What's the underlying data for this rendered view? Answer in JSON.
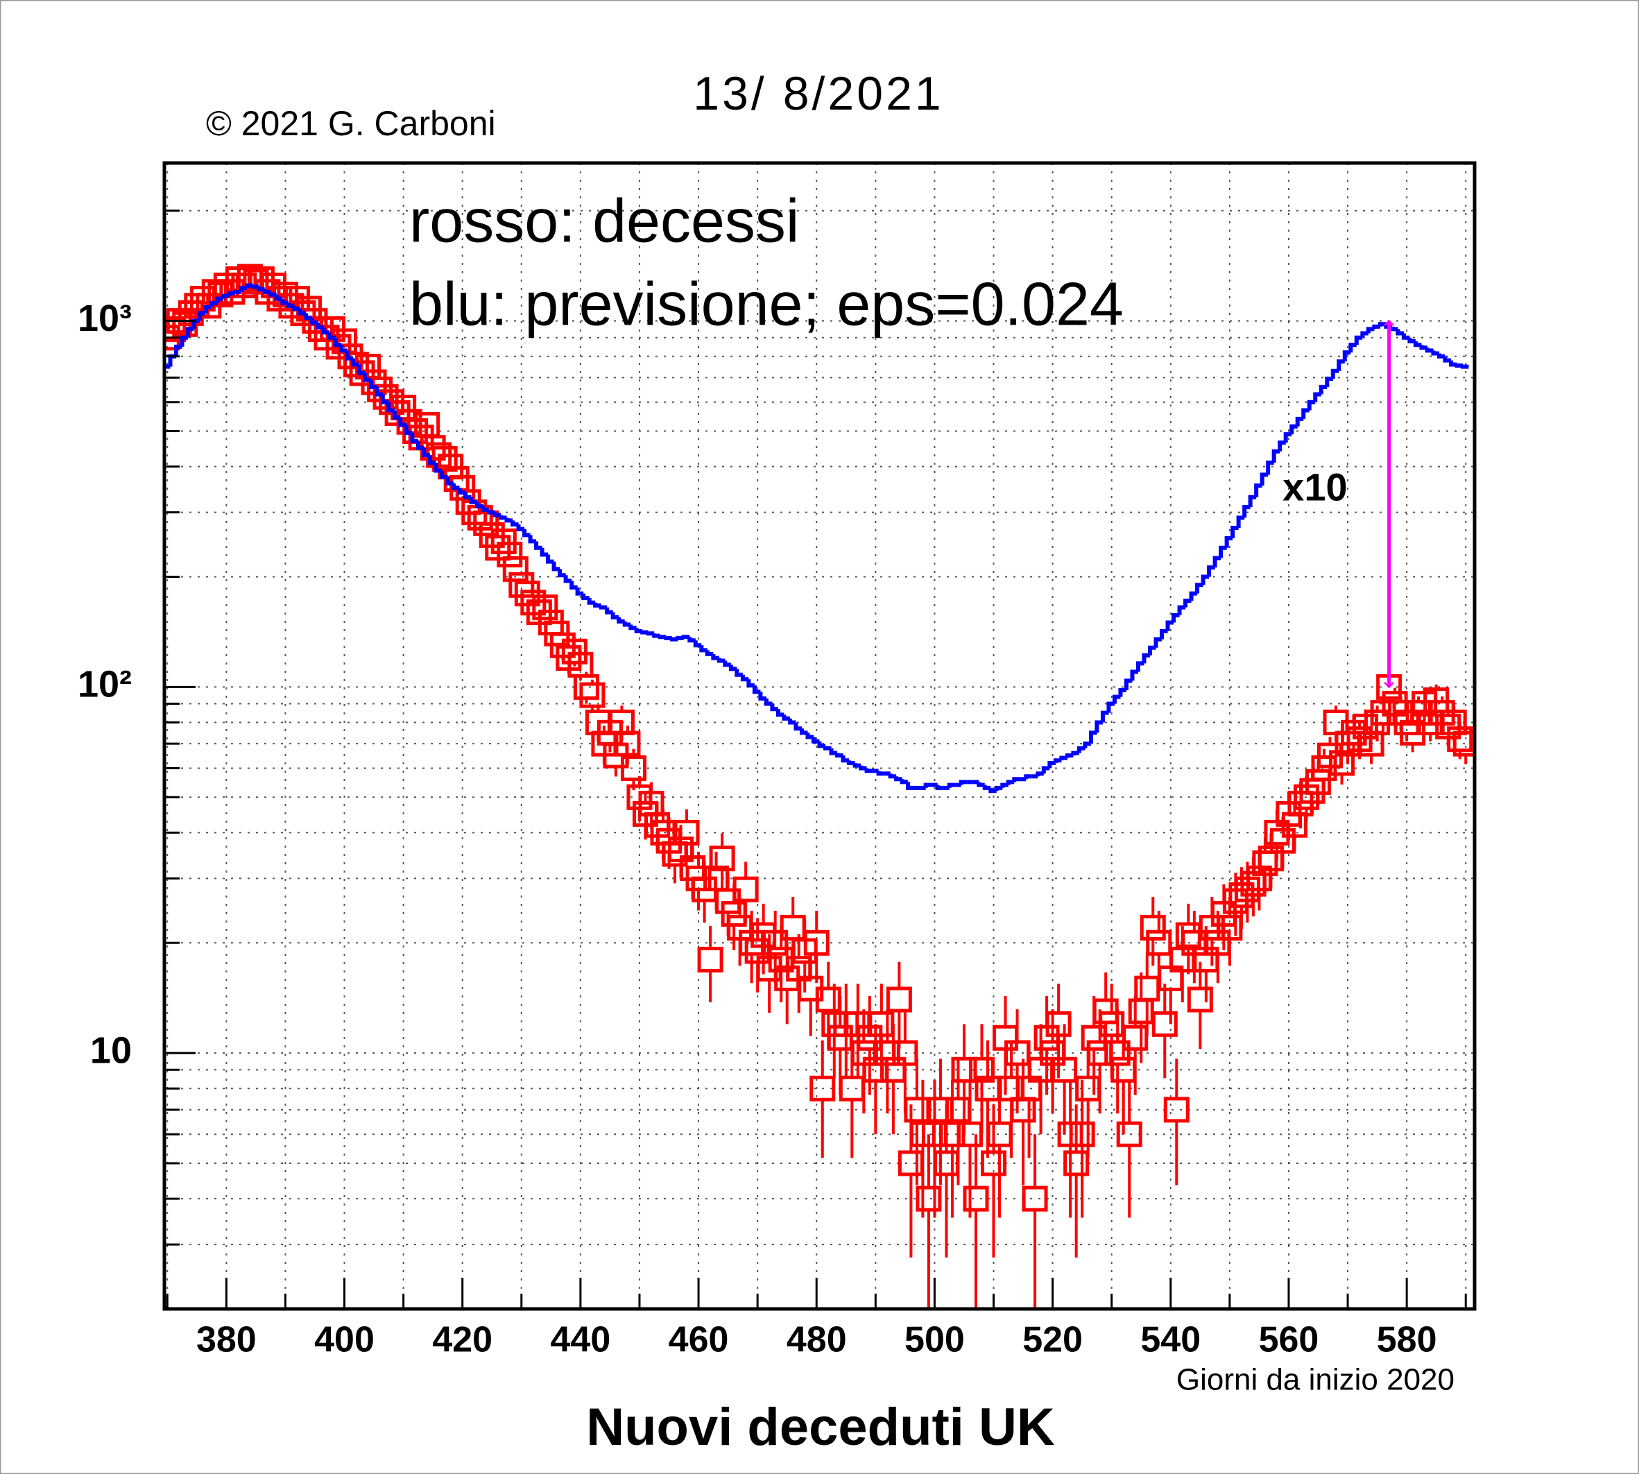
{
  "chart_data": {
    "type": "scatter-step",
    "title": "13/ 8/2021",
    "credit": "© 2021 G. Carboni",
    "x_label": "Giorni da inizio 2020",
    "y_label": "Nuovi deceduti UK",
    "log_y": true,
    "grid": true,
    "xlim": [
      369.5,
      591.5
    ],
    "ylim": [
      2,
      2700
    ],
    "xticks": [
      380,
      400,
      420,
      440,
      460,
      480,
      500,
      520,
      540,
      560,
      580
    ],
    "xminorticks": [
      370,
      390,
      410,
      430,
      450,
      470,
      490,
      510,
      530,
      550,
      570,
      590
    ],
    "yticks": [
      10,
      {
        "value": 100,
        "label": "10²"
      },
      {
        "value": 1000,
        "label": "10³"
      }
    ],
    "yminorticks": [
      2,
      3,
      4,
      5,
      6,
      7,
      8,
      9,
      20,
      30,
      40,
      50,
      60,
      70,
      80,
      90,
      200,
      300,
      400,
      500,
      600,
      700,
      800,
      900,
      2000
    ],
    "x": [
      370,
      371,
      372,
      373,
      374,
      375,
      376,
      377,
      378,
      379,
      380,
      381,
      382,
      383,
      384,
      385,
      386,
      387,
      388,
      389,
      390,
      391,
      392,
      393,
      394,
      395,
      396,
      397,
      398,
      399,
      400,
      401,
      402,
      403,
      404,
      405,
      406,
      407,
      408,
      409,
      410,
      411,
      412,
      413,
      414,
      415,
      416,
      417,
      418,
      419,
      420,
      421,
      422,
      423,
      424,
      425,
      426,
      427,
      428,
      429,
      430,
      431,
      432,
      433,
      434,
      435,
      436,
      437,
      438,
      439,
      440,
      441,
      442,
      443,
      444,
      445,
      446,
      447,
      448,
      449,
      450,
      451,
      452,
      453,
      454,
      455,
      456,
      457,
      458,
      459,
      460,
      461,
      462,
      463,
      464,
      465,
      466,
      467,
      468,
      469,
      470,
      471,
      472,
      473,
      474,
      475,
      476,
      477,
      478,
      479,
      480,
      481,
      482,
      483,
      484,
      485,
      486,
      487,
      488,
      489,
      490,
      491,
      492,
      493,
      494,
      495,
      496,
      497,
      498,
      499,
      500,
      501,
      502,
      503,
      504,
      505,
      506,
      507,
      508,
      509,
      510,
      511,
      512,
      513,
      514,
      515,
      516,
      517,
      518,
      519,
      520,
      521,
      522,
      523,
      524,
      525,
      526,
      527,
      528,
      529,
      530,
      531,
      532,
      533,
      534,
      535,
      536,
      537,
      538,
      539,
      540,
      541,
      542,
      543,
      544,
      545,
      546,
      547,
      548,
      549,
      550,
      551,
      552,
      553,
      554,
      555,
      556,
      557,
      558,
      559,
      560,
      561,
      562,
      563,
      564,
      565,
      566,
      567,
      568,
      569,
      570,
      571,
      572,
      573,
      574,
      575,
      576,
      577,
      578,
      579,
      580,
      581,
      582,
      583,
      584,
      585,
      586,
      587,
      588,
      589,
      590
    ],
    "series": [
      {
        "name": "rosso: decessi",
        "color": "#ff0000",
        "style": "points",
        "values": [
          900,
          950,
          1000,
          980,
          1050,
          1100,
          1150,
          1100,
          1200,
          1180,
          1250,
          1200,
          1300,
          1250,
          1320,
          1280,
          1300,
          1200,
          1250,
          1150,
          1180,
          1100,
          1150,
          1050,
          1080,
          1000,
          950,
          900,
          950,
          850,
          880,
          800,
          760,
          720,
          750,
          680,
          650,
          620,
          600,
          560,
          580,
          530,
          500,
          480,
          520,
          450,
          430,
          420,
          400,
          370,
          350,
          320,
          300,
          290,
          280,
          260,
          240,
          250,
          230,
          210,
          190,
          180,
          170,
          160,
          165,
          150,
          140,
          130,
          120,
          125,
          115,
          100,
          95,
          80,
          70,
          75,
          65,
          80,
          70,
          60,
          50,
          45,
          48,
          42,
          40,
          38,
          35,
          36,
          40,
          32,
          30,
          28,
          18,
          30,
          34,
          26,
          24,
          22,
          28,
          20,
          19,
          21,
          17,
          20,
          18,
          16,
          22,
          17,
          19,
          15,
          20,
          8,
          14,
          12,
          11,
          12,
          8,
          12,
          10,
          11,
          9,
          12,
          10,
          9,
          14,
          10,
          5,
          7,
          6,
          4,
          6,
          7,
          5,
          6,
          7,
          9,
          6,
          4,
          9,
          8,
          5,
          6,
          11,
          8,
          10,
          7,
          8,
          4,
          9,
          11,
          10,
          12,
          9,
          6,
          5,
          6,
          8,
          11,
          10,
          13,
          12,
          10,
          9,
          6,
          11,
          13,
          15,
          22,
          20,
          12,
          16,
          7,
          18,
          21,
          20,
          14,
          18,
          22,
          20,
          24,
          22,
          26,
          27,
          28,
          29,
          30,
          33,
          34,
          40,
          38,
          45,
          42,
          48,
          50,
          52,
          55,
          60,
          65,
          80,
          62,
          70,
          75,
          72,
          78,
          70,
          80,
          85,
          100,
          90,
          85,
          80,
          75,
          85,
          90,
          80,
          92,
          85,
          78,
          80,
          72,
          70
        ]
      },
      {
        "name": "blu: previsione; eps=0.024",
        "color": "#0000ff",
        "style": "step",
        "values": [
          750,
          800,
          850,
          900,
          950,
          1000,
          1050,
          1090,
          1120,
          1150,
          1170,
          1190,
          1200,
          1230,
          1250,
          1240,
          1220,
          1200,
          1180,
          1150,
          1120,
          1100,
          1080,
          1050,
          1020,
          990,
          960,
          930,
          900,
          860,
          830,
          790,
          760,
          720,
          690,
          660,
          630,
          600,
          570,
          545,
          520,
          495,
          470,
          450,
          430,
          410,
          390,
          375,
          360,
          350,
          340,
          330,
          320,
          312,
          305,
          300,
          295,
          290,
          285,
          278,
          270,
          260,
          250,
          240,
          230,
          220,
          210,
          202,
          195,
          187,
          180,
          175,
          170,
          167,
          165,
          160,
          155,
          151,
          148,
          145,
          142,
          141,
          140,
          138,
          137,
          136,
          135,
          136,
          137,
          134,
          130,
          126,
          123,
          120,
          118,
          115,
          112,
          108,
          105,
          101,
          97,
          93,
          90,
          87,
          84,
          82,
          80,
          77,
          75,
          73,
          71,
          69,
          68,
          66,
          65,
          63,
          62,
          61,
          60,
          59,
          59,
          58,
          58,
          57,
          56,
          55,
          53,
          53,
          53,
          54,
          54,
          53,
          53,
          54,
          54,
          55,
          55,
          55,
          54,
          53,
          52,
          53,
          54,
          55,
          56,
          56,
          57,
          57,
          58,
          60,
          62,
          63,
          64,
          65,
          66,
          68,
          70,
          75,
          80,
          85,
          90,
          94,
          98,
          104,
          110,
          116,
          122,
          128,
          135,
          142,
          150,
          157,
          165,
          172,
          180,
          190,
          200,
          212,
          225,
          240,
          255,
          272,
          290,
          310,
          330,
          355,
          380,
          410,
          440,
          465,
          490,
          515,
          540,
          570,
          600,
          630,
          660,
          695,
          730,
          775,
          820,
          860,
          900,
          925,
          950,
          965,
          980,
          965,
          950,
          925,
          900,
          880,
          860,
          845,
          830,
          815,
          800,
          780,
          760,
          755,
          750
        ]
      }
    ],
    "arrow": {
      "x": 577,
      "from": 1000,
      "to": 100,
      "label": "x10",
      "color": "#ff00ff"
    }
  }
}
